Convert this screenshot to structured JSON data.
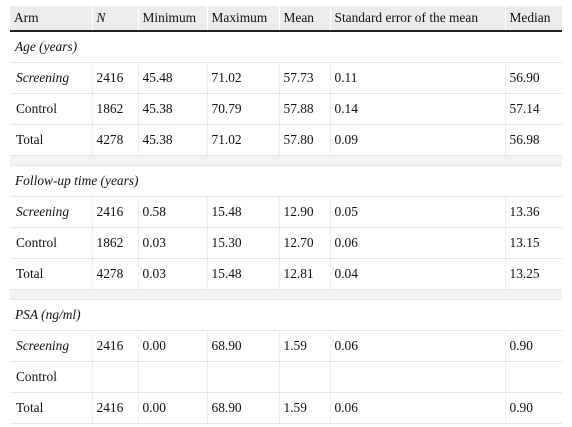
{
  "columns": [
    "Arm",
    "N",
    "Minimum",
    "Maximum",
    "Mean",
    "Standard error of the mean",
    "Median"
  ],
  "sections": [
    {
      "title": "Age (years)",
      "rows": [
        {
          "arm": "Screening",
          "n": "2416",
          "min": "45.48",
          "max": "71.02",
          "mean": "57.73",
          "sem": "0.11",
          "median": "56.90"
        },
        {
          "arm": "Control",
          "n": "1862",
          "min": "45.38",
          "max": "70.79",
          "mean": "57.88",
          "sem": "0.14",
          "median": "57.14"
        },
        {
          "arm": "Total",
          "n": "4278",
          "min": "45.38",
          "max": "71.02",
          "mean": "57.80",
          "sem": "0.09",
          "median": "56.98"
        }
      ]
    },
    {
      "title": "Follow-up time (years)",
      "rows": [
        {
          "arm": "Screening",
          "n": "2416",
          "min": "0.58",
          "max": "15.48",
          "mean": "12.90",
          "sem": "0.05",
          "median": "13.36"
        },
        {
          "arm": "Control",
          "n": "1862",
          "min": "0.03",
          "max": "15.30",
          "mean": "12.70",
          "sem": "0.06",
          "median": "13.15"
        },
        {
          "arm": "Total",
          "n": "4278",
          "min": "0.03",
          "max": "15.48",
          "mean": "12.81",
          "sem": "0.04",
          "median": "13.25"
        }
      ]
    },
    {
      "title": "PSA (ng/ml)",
      "rows": [
        {
          "arm": "Screening",
          "n": "2416",
          "min": "0.00",
          "max": "68.90",
          "mean": "1.59",
          "sem": "0.06",
          "median": "0.90"
        },
        {
          "arm": "Control",
          "n": "",
          "min": "",
          "max": "",
          "mean": "",
          "sem": "",
          "median": ""
        },
        {
          "arm": "Total",
          "n": "2416",
          "min": "0.00",
          "max": "68.90",
          "mean": "1.59",
          "sem": "0.06",
          "median": "0.90"
        }
      ]
    }
  ]
}
